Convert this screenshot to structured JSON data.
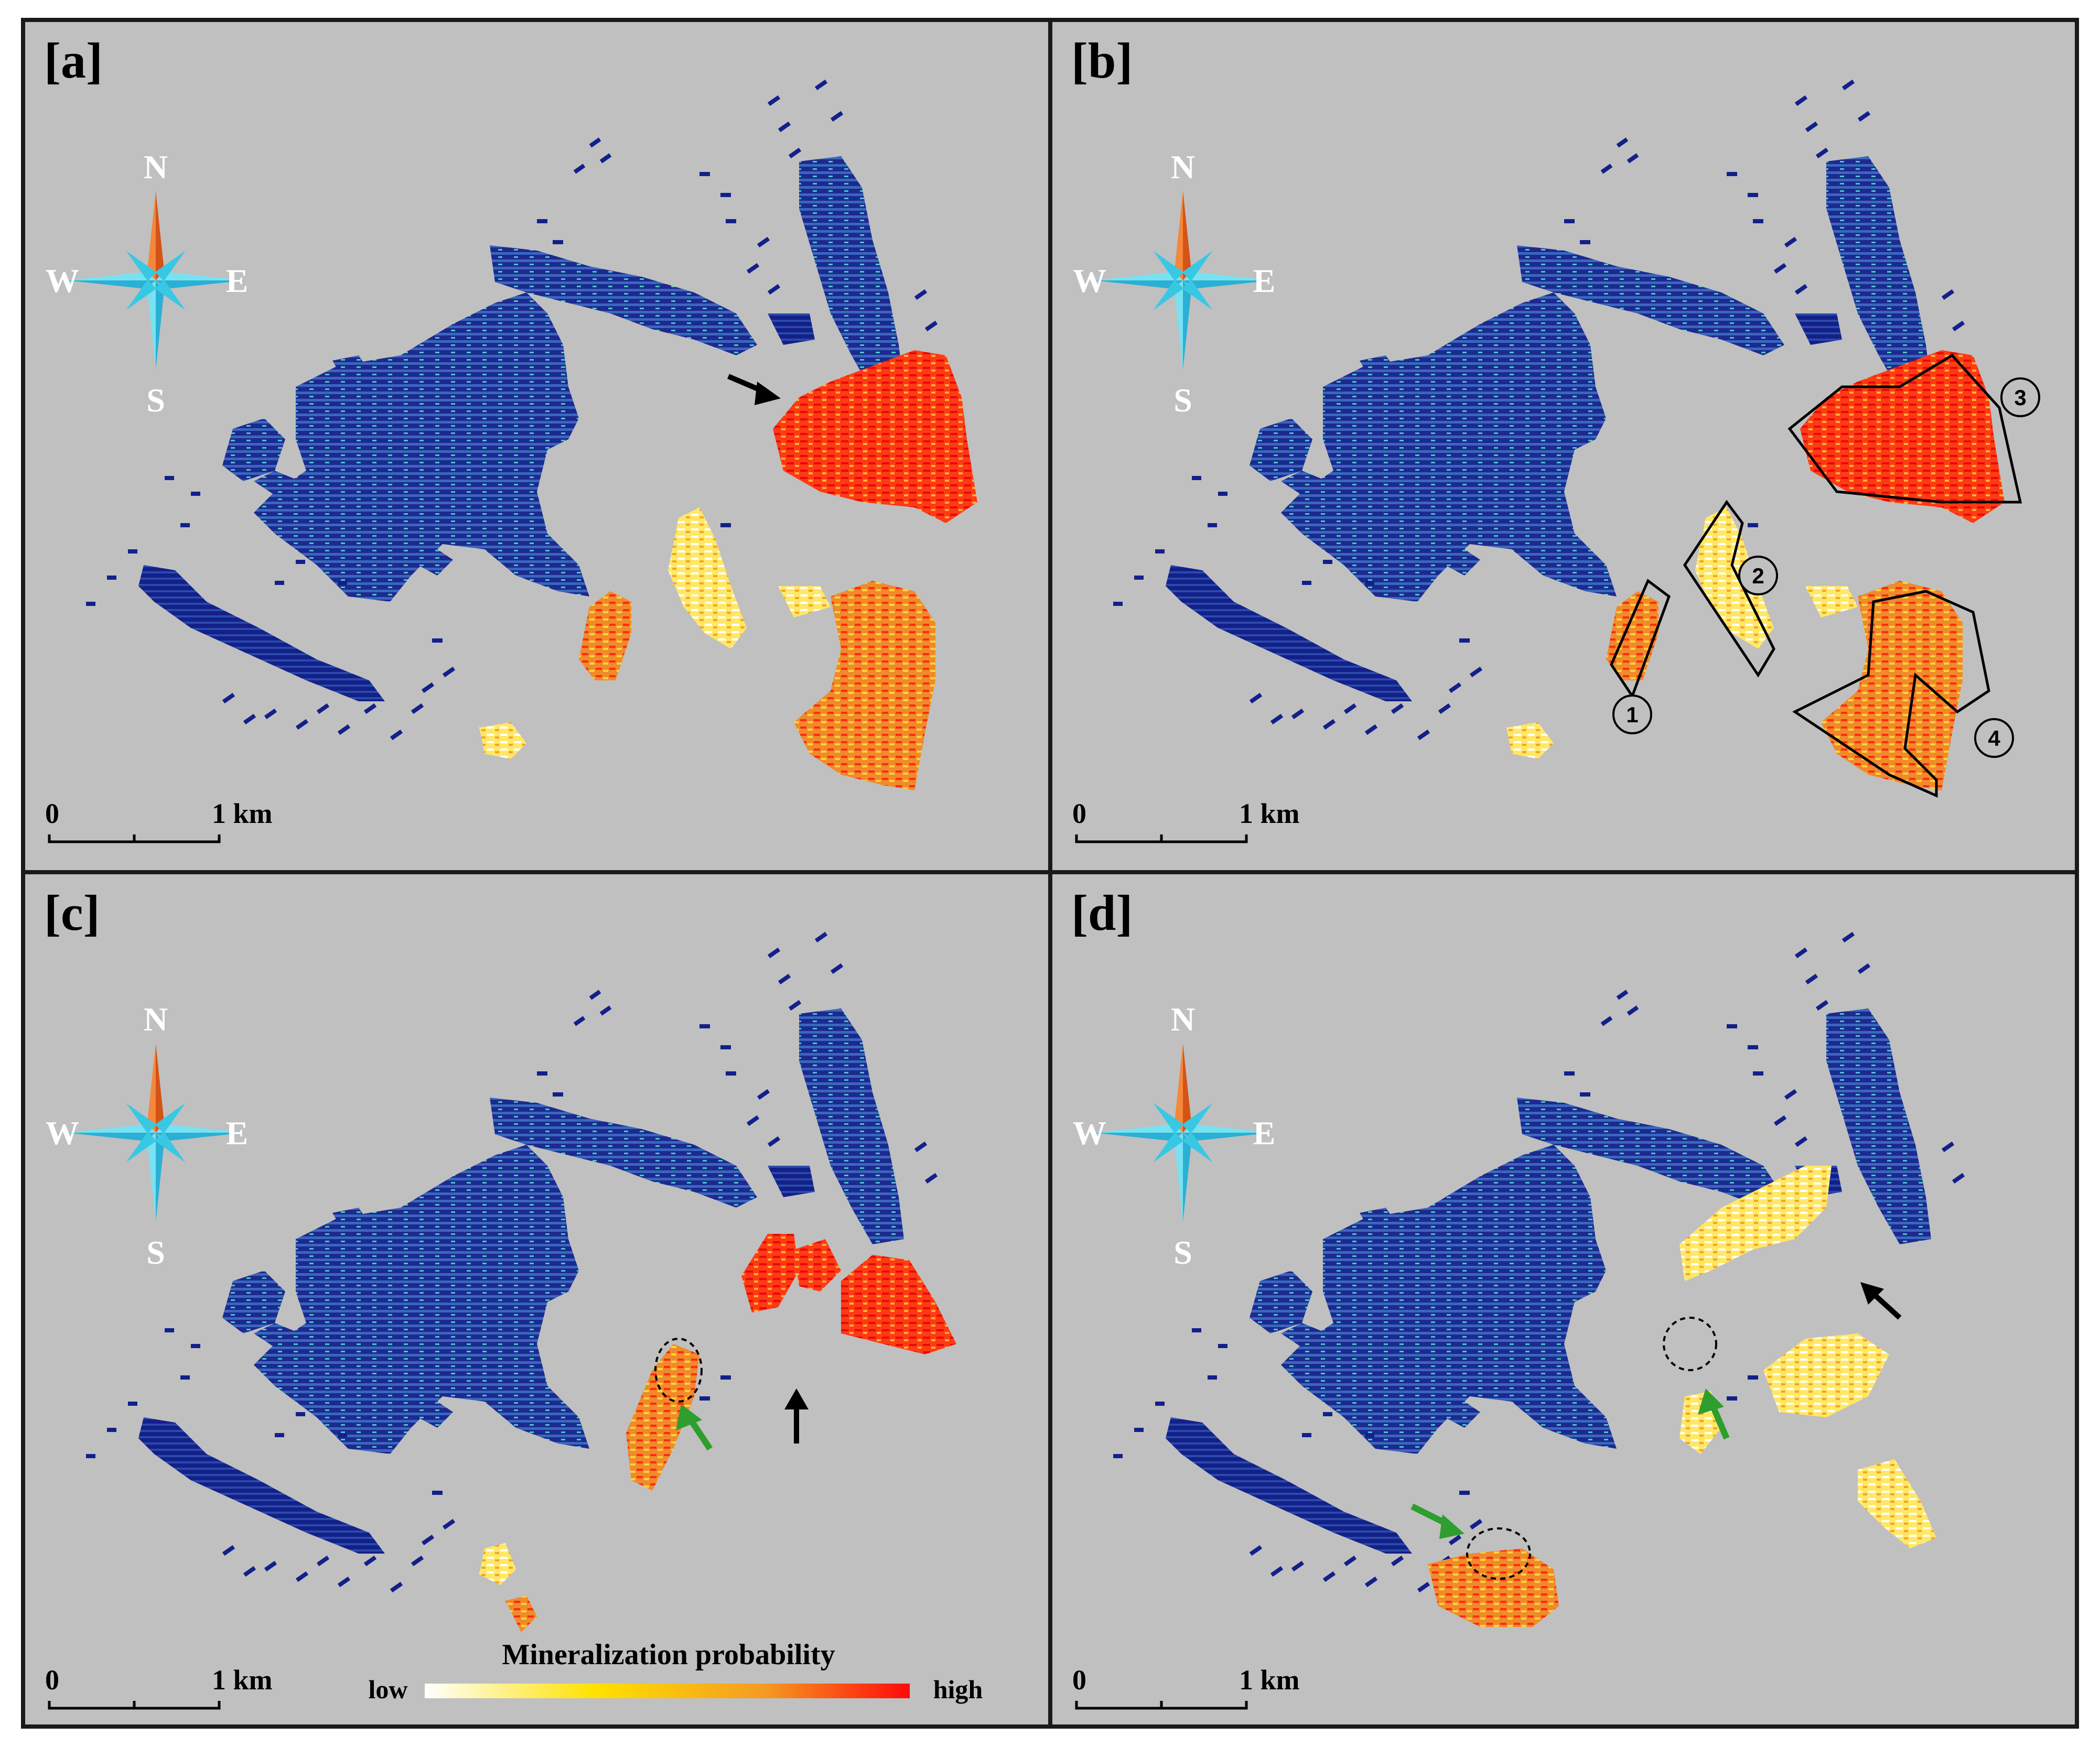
{
  "panels": [
    {
      "label": "[a]"
    },
    {
      "label": "[b]"
    },
    {
      "label": "[c]"
    },
    {
      "label": "[d]"
    }
  ],
  "compass": {
    "north": "N",
    "south": "S",
    "west": "W",
    "east": "E"
  },
  "scale_bar": {
    "start": "0",
    "end": "1 km"
  },
  "zones": {
    "z1": "1",
    "z2": "2",
    "z3": "3",
    "z4": "4"
  },
  "legend": {
    "title": "Mineralization probability",
    "low": "low",
    "high": "high"
  },
  "colors": {
    "background": "#c0c0c0",
    "border": "#1a1a1a",
    "low_prob_blue": "#13208a",
    "mid_blue": "#2f5fb8",
    "cyan": "#4fc3c8",
    "ramp_white": "#ffffff",
    "ramp_yellow": "#ffe100",
    "ramp_orange": "#f59a22",
    "ramp_red": "#ff0a0a",
    "compass_cyan": "#38c8e4",
    "compass_orange": "#f06a1c",
    "green_arrow": "#2e9e2e"
  }
}
